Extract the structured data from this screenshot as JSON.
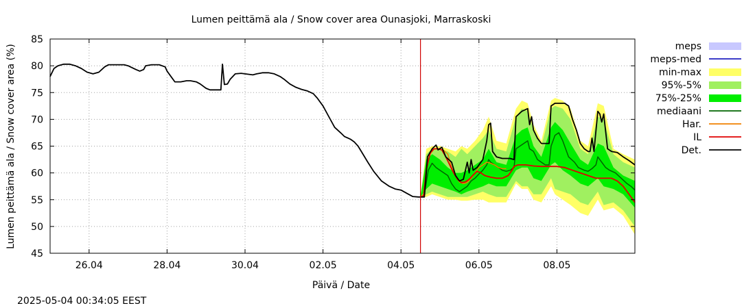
{
  "chart_data": {
    "type": "line",
    "title": "Lumen peittämä ala / Snow cover area Ounasjoki, Marraskoski",
    "xlabel": "Päivä / Date",
    "ylabel": "Lumen peittämä ala / Snow cover area (%)",
    "timestamp": "2025-05-04 00:34:05 EEST",
    "ylim": [
      45,
      85
    ],
    "yticks": [
      45,
      50,
      55,
      60,
      65,
      70,
      75,
      80,
      85
    ],
    "xlim": [
      0,
      15.0
    ],
    "xticks": [
      {
        "x": 1.0,
        "label": "26.04"
      },
      {
        "x": 3.0,
        "label": "28.04"
      },
      {
        "x": 5.0,
        "label": "30.04"
      },
      {
        "x": 7.0,
        "label": "02.05"
      },
      {
        "x": 9.0,
        "label": "04.05"
      },
      {
        "x": 11.0,
        "label": "06.05"
      },
      {
        "x": 13.0,
        "label": "08.05"
      }
    ],
    "forecast_start_x": 9.5,
    "grid": true,
    "legend_position": "right",
    "colors": {
      "meps": "#c8c8ff",
      "meps_med": "#2020c0",
      "min_max": "#ffff66",
      "p95_5": "#a0f060",
      "p75_25": "#00ee00",
      "mediaani": "#006400",
      "har": "#f08000",
      "il": "#e00000",
      "det": "#000000",
      "forecast_line": "#d00000"
    },
    "legend": [
      {
        "key": "meps",
        "label": "meps",
        "kind": "band"
      },
      {
        "key": "meps_med",
        "label": "meps-med",
        "kind": "line"
      },
      {
        "key": "min_max",
        "label": "min-max",
        "kind": "band"
      },
      {
        "key": "p95_5",
        "label": "95%-5%",
        "kind": "band"
      },
      {
        "key": "p75_25",
        "label": "75%-25%",
        "kind": "band"
      },
      {
        "key": "mediaani",
        "label": "mediaani",
        "kind": "line"
      },
      {
        "key": "har",
        "label": "Har.",
        "kind": "line"
      },
      {
        "key": "il",
        "label": "IL",
        "kind": "line"
      },
      {
        "key": "det",
        "label": "Det.",
        "kind": "line"
      }
    ],
    "observed": [
      [
        0.0,
        78.0
      ],
      [
        0.1,
        79.5
      ],
      [
        0.2,
        80.0
      ],
      [
        0.35,
        80.3
      ],
      [
        0.5,
        80.3
      ],
      [
        0.65,
        80.0
      ],
      [
        0.8,
        79.5
      ],
      [
        0.95,
        78.8
      ],
      [
        1.1,
        78.5
      ],
      [
        1.25,
        78.8
      ],
      [
        1.4,
        79.8
      ],
      [
        1.5,
        80.2
      ],
      [
        1.7,
        80.2
      ],
      [
        1.9,
        80.2
      ],
      [
        2.0,
        80.0
      ],
      [
        2.2,
        79.3
      ],
      [
        2.3,
        79.0
      ],
      [
        2.4,
        79.3
      ],
      [
        2.45,
        80.0
      ],
      [
        2.6,
        80.2
      ],
      [
        2.8,
        80.2
      ],
      [
        2.95,
        79.8
      ],
      [
        3.0,
        79.0
      ],
      [
        3.1,
        78.0
      ],
      [
        3.2,
        77.0
      ],
      [
        3.35,
        77.0
      ],
      [
        3.5,
        77.2
      ],
      [
        3.6,
        77.2
      ],
      [
        3.75,
        77.0
      ],
      [
        3.85,
        76.6
      ],
      [
        4.0,
        75.8
      ],
      [
        4.1,
        75.5
      ],
      [
        4.25,
        75.5
      ],
      [
        4.38,
        75.5
      ],
      [
        4.42,
        80.3
      ],
      [
        4.47,
        76.5
      ],
      [
        4.55,
        76.6
      ],
      [
        4.62,
        77.5
      ],
      [
        4.75,
        78.5
      ],
      [
        4.9,
        78.6
      ],
      [
        5.0,
        78.5
      ],
      [
        5.2,
        78.3
      ],
      [
        5.3,
        78.5
      ],
      [
        5.45,
        78.7
      ],
      [
        5.6,
        78.7
      ],
      [
        5.75,
        78.5
      ],
      [
        5.9,
        78.0
      ],
      [
        6.0,
        77.5
      ],
      [
        6.15,
        76.6
      ],
      [
        6.3,
        76.0
      ],
      [
        6.45,
        75.6
      ],
      [
        6.6,
        75.3
      ],
      [
        6.75,
        74.8
      ],
      [
        6.85,
        74.0
      ],
      [
        7.0,
        72.5
      ],
      [
        7.15,
        70.5
      ],
      [
        7.3,
        68.5
      ],
      [
        7.45,
        67.5
      ],
      [
        7.55,
        66.8
      ],
      [
        7.7,
        66.3
      ],
      [
        7.8,
        65.8
      ],
      [
        7.9,
        65.0
      ],
      [
        8.0,
        63.8
      ],
      [
        8.15,
        62.0
      ],
      [
        8.3,
        60.3
      ],
      [
        8.5,
        58.5
      ],
      [
        8.7,
        57.5
      ],
      [
        8.85,
        57.0
      ],
      [
        9.0,
        56.8
      ],
      [
        9.15,
        56.2
      ],
      [
        9.3,
        55.6
      ],
      [
        9.45,
        55.5
      ],
      [
        9.5,
        55.5
      ]
    ],
    "det": [
      [
        9.5,
        55.5
      ],
      [
        9.6,
        55.5
      ],
      [
        9.68,
        63.0
      ],
      [
        9.8,
        64.5
      ],
      [
        9.9,
        65.2
      ],
      [
        9.95,
        64.3
      ],
      [
        10.05,
        64.8
      ],
      [
        10.15,
        63.0
      ],
      [
        10.3,
        62.0
      ],
      [
        10.4,
        59.5
      ],
      [
        10.5,
        58.5
      ],
      [
        10.6,
        58.8
      ],
      [
        10.7,
        62.0
      ],
      [
        10.75,
        60.0
      ],
      [
        10.8,
        62.5
      ],
      [
        10.85,
        60.5
      ],
      [
        10.95,
        61.0
      ],
      [
        11.1,
        62.5
      ],
      [
        11.2,
        66.0
      ],
      [
        11.25,
        69.0
      ],
      [
        11.3,
        69.3
      ],
      [
        11.35,
        64.0
      ],
      [
        11.45,
        63.0
      ],
      [
        11.6,
        62.7
      ],
      [
        11.8,
        62.7
      ],
      [
        11.9,
        62.5
      ],
      [
        11.95,
        70.5
      ],
      [
        12.1,
        71.5
      ],
      [
        12.25,
        72.0
      ],
      [
        12.3,
        69.0
      ],
      [
        12.35,
        70.5
      ],
      [
        12.4,
        68.0
      ],
      [
        12.5,
        66.5
      ],
      [
        12.6,
        65.5
      ],
      [
        12.75,
        65.5
      ],
      [
        12.8,
        65.5
      ],
      [
        12.85,
        72.5
      ],
      [
        12.95,
        73.0
      ],
      [
        13.2,
        73.0
      ],
      [
        13.3,
        72.5
      ],
      [
        13.4,
        70.0
      ],
      [
        13.5,
        68.0
      ],
      [
        13.6,
        65.5
      ],
      [
        13.7,
        64.5
      ],
      [
        13.8,
        64.0
      ],
      [
        13.85,
        64.0
      ],
      [
        13.9,
        66.5
      ],
      [
        13.95,
        64.0
      ],
      [
        14.05,
        71.5
      ],
      [
        14.1,
        71.0
      ],
      [
        14.15,
        69.5
      ],
      [
        14.2,
        71.0
      ],
      [
        14.3,
        64.5
      ],
      [
        14.4,
        64.0
      ],
      [
        14.55,
        63.8
      ],
      [
        14.7,
        63.0
      ],
      [
        14.85,
        62.3
      ],
      [
        15.0,
        61.5
      ]
    ],
    "mediaani": [
      [
        9.5,
        55.5
      ],
      [
        9.6,
        56.0
      ],
      [
        9.7,
        60.5
      ],
      [
        9.8,
        61.8
      ],
      [
        9.9,
        61.0
      ],
      [
        10.0,
        60.5
      ],
      [
        10.1,
        60.0
      ],
      [
        10.2,
        59.5
      ],
      [
        10.3,
        58.0
      ],
      [
        10.4,
        57.0
      ],
      [
        10.5,
        56.5
      ],
      [
        10.6,
        57.0
      ],
      [
        10.7,
        57.5
      ],
      [
        10.8,
        58.5
      ],
      [
        10.9,
        59.0
      ],
      [
        11.0,
        59.8
      ],
      [
        11.1,
        60.5
      ],
      [
        11.2,
        61.5
      ],
      [
        11.25,
        62.5
      ],
      [
        11.3,
        62.0
      ],
      [
        11.4,
        61.5
      ],
      [
        11.5,
        61.0
      ],
      [
        11.6,
        60.5
      ],
      [
        11.7,
        60.3
      ],
      [
        11.8,
        60.5
      ],
      [
        11.9,
        61.0
      ],
      [
        11.95,
        64.5
      ],
      [
        12.05,
        65.0
      ],
      [
        12.15,
        65.5
      ],
      [
        12.25,
        66.0
      ],
      [
        12.3,
        64.5
      ],
      [
        12.4,
        64.0
      ],
      [
        12.5,
        62.5
      ],
      [
        12.6,
        62.0
      ],
      [
        12.7,
        61.5
      ],
      [
        12.8,
        61.5
      ],
      [
        12.85,
        65.0
      ],
      [
        12.95,
        67.0
      ],
      [
        13.05,
        67.5
      ],
      [
        13.15,
        66.0
      ],
      [
        13.3,
        63.0
      ],
      [
        13.45,
        62.0
      ],
      [
        13.55,
        61.0
      ],
      [
        13.7,
        60.5
      ],
      [
        13.8,
        60.3
      ],
      [
        13.9,
        60.8
      ],
      [
        14.0,
        61.5
      ],
      [
        14.05,
        63.0
      ],
      [
        14.15,
        62.0
      ],
      [
        14.25,
        61.0
      ],
      [
        14.35,
        60.5
      ],
      [
        14.5,
        60.0
      ],
      [
        14.65,
        59.0
      ],
      [
        14.8,
        58.0
      ],
      [
        14.9,
        57.5
      ],
      [
        15.0,
        56.8
      ]
    ],
    "har": [
      [
        9.5,
        55.5
      ],
      [
        9.6,
        56.0
      ],
      [
        9.65,
        61.0
      ],
      [
        9.75,
        63.5
      ],
      [
        9.85,
        64.5
      ],
      [
        9.95,
        64.5
      ],
      [
        10.1,
        64.2
      ],
      [
        10.2,
        63.5
      ],
      [
        10.3,
        61.0
      ],
      [
        10.4,
        59.5
      ],
      [
        10.5,
        58.3
      ],
      [
        10.6,
        58.0
      ],
      [
        10.7,
        58.2
      ],
      [
        10.8,
        59.0
      ],
      [
        10.9,
        60.0
      ],
      [
        11.0,
        61.0
      ],
      [
        11.1,
        61.5
      ],
      [
        11.2,
        62.0
      ],
      [
        11.3,
        61.8
      ],
      [
        11.4,
        61.5
      ],
      [
        11.5,
        61.0
      ],
      [
        11.6,
        60.8
      ],
      [
        11.7,
        60.8
      ]
    ],
    "il": [
      [
        9.5,
        55.5
      ],
      [
        9.58,
        55.6
      ],
      [
        9.65,
        60.5
      ],
      [
        9.75,
        63.8
      ],
      [
        9.85,
        64.5
      ],
      [
        9.95,
        64.5
      ],
      [
        10.05,
        64.3
      ],
      [
        10.15,
        63.0
      ],
      [
        10.25,
        61.5
      ],
      [
        10.35,
        60.0
      ],
      [
        10.45,
        58.8
      ],
      [
        10.55,
        58.2
      ],
      [
        10.65,
        58.3
      ],
      [
        10.75,
        58.8
      ],
      [
        10.85,
        59.6
      ],
      [
        10.95,
        60.3
      ],
      [
        11.05,
        60.0
      ],
      [
        11.15,
        59.5
      ],
      [
        11.3,
        59.2
      ],
      [
        11.45,
        59.0
      ],
      [
        11.6,
        59.0
      ],
      [
        11.75,
        59.5
      ],
      [
        11.85,
        60.5
      ],
      [
        11.9,
        61.2
      ],
      [
        12.0,
        61.5
      ],
      [
        12.2,
        61.5
      ],
      [
        12.4,
        61.3
      ],
      [
        12.6,
        61.2
      ],
      [
        12.8,
        61.2
      ],
      [
        13.0,
        61.2
      ],
      [
        13.2,
        61.0
      ],
      [
        13.4,
        60.5
      ],
      [
        13.6,
        60.0
      ],
      [
        13.8,
        59.5
      ],
      [
        14.0,
        59.0
      ],
      [
        14.2,
        59.0
      ],
      [
        14.4,
        59.0
      ],
      [
        14.55,
        58.5
      ],
      [
        14.7,
        57.5
      ],
      [
        14.85,
        56.0
      ],
      [
        15.0,
        54.5
      ]
    ],
    "band_x": [
      9.5,
      9.65,
      9.8,
      10.0,
      10.2,
      10.4,
      10.55,
      10.7,
      10.9,
      11.1,
      11.25,
      11.45,
      11.7,
      11.95,
      12.1,
      12.25,
      12.4,
      12.6,
      12.85,
      12.95,
      13.15,
      13.35,
      13.6,
      13.8,
      14.05,
      14.2,
      14.45,
      14.7,
      15.0
    ],
    "minmax_lo": [
      55.5,
      55.5,
      56.0,
      55.5,
      55.0,
      55.0,
      54.8,
      54.8,
      55.0,
      55.0,
      54.5,
      54.5,
      54.5,
      58.0,
      57.0,
      57.0,
      55.0,
      54.5,
      57.5,
      56.0,
      55.0,
      54.0,
      52.5,
      52.0,
      55.0,
      53.0,
      53.5,
      52.0,
      48.5
    ],
    "minmax_hi": [
      55.6,
      64.5,
      65.0,
      65.0,
      64.5,
      64.0,
      65.0,
      64.5,
      66.0,
      68.0,
      70.5,
      66.0,
      65.5,
      72.0,
      73.5,
      73.0,
      69.0,
      66.0,
      73.5,
      74.0,
      73.5,
      72.0,
      66.0,
      65.0,
      73.0,
      72.5,
      64.5,
      63.5,
      62.5
    ],
    "p95_lo": [
      55.5,
      56.0,
      56.5,
      56.0,
      55.5,
      55.5,
      55.5,
      55.5,
      56.0,
      56.5,
      56.0,
      55.5,
      55.5,
      58.5,
      57.5,
      57.5,
      56.0,
      56.0,
      59.0,
      57.0,
      56.5,
      56.0,
      54.5,
      54.0,
      56.5,
      54.0,
      54.5,
      53.0,
      50.0
    ],
    "p95_hi": [
      55.6,
      63.5,
      64.5,
      64.5,
      64.0,
      63.0,
      64.5,
      63.5,
      65.0,
      66.5,
      68.0,
      64.5,
      64.0,
      70.5,
      72.0,
      71.5,
      68.0,
      65.0,
      72.0,
      72.5,
      72.0,
      70.0,
      64.5,
      63.5,
      70.5,
      70.0,
      63.5,
      62.0,
      61.0
    ],
    "p75_lo": [
      55.5,
      57.0,
      58.0,
      57.5,
      57.0,
      56.5,
      56.0,
      56.5,
      57.0,
      57.5,
      58.0,
      57.5,
      57.5,
      60.5,
      61.0,
      61.0,
      59.0,
      58.5,
      61.5,
      62.0,
      60.5,
      59.5,
      58.0,
      57.5,
      59.0,
      57.5,
      57.0,
      56.0,
      53.5
    ],
    "p75_hi": [
      55.6,
      62.5,
      63.5,
      62.5,
      61.0,
      60.0,
      60.0,
      60.5,
      61.5,
      62.5,
      64.5,
      62.0,
      61.5,
      67.0,
      68.0,
      68.5,
      65.0,
      63.0,
      68.5,
      69.5,
      68.0,
      65.5,
      62.5,
      61.5,
      65.5,
      65.0,
      61.0,
      59.5,
      58.5
    ]
  }
}
